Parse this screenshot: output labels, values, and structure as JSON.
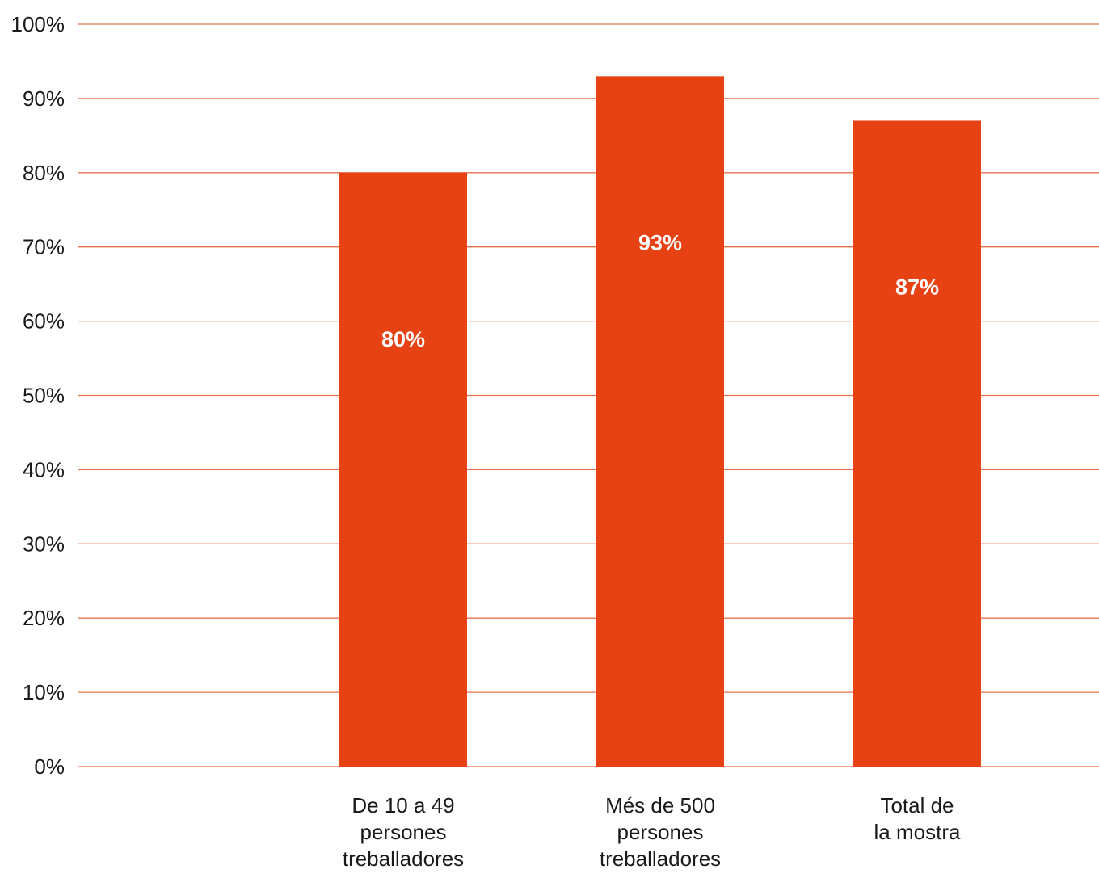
{
  "chart_data": {
    "type": "bar",
    "categories": [
      [
        "De 10 a 49",
        "persones",
        "treballadores"
      ],
      [
        "Més de 500",
        "persones",
        "treballadores"
      ],
      [
        "Total de",
        "la mostra"
      ]
    ],
    "values": [
      80,
      93,
      87
    ],
    "data_labels": [
      "80%",
      "93%",
      "87%"
    ],
    "ylim": [
      0,
      100
    ],
    "yticks": [
      0,
      10,
      20,
      30,
      40,
      50,
      60,
      70,
      80,
      90,
      100
    ],
    "ytick_labels": [
      "0%",
      "10%",
      "20%",
      "30%",
      "40%",
      "50%",
      "60%",
      "70%",
      "80%",
      "90%",
      "100%"
    ],
    "grid": true,
    "colors": {
      "bar": "#e64213",
      "grid": "#e8734a",
      "label": "#ffffff",
      "text": "#1a1a1a"
    }
  }
}
